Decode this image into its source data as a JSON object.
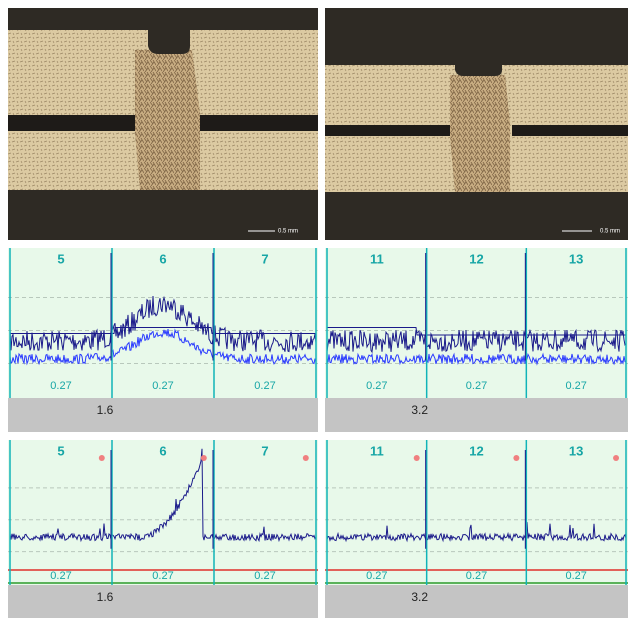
{
  "micrographs": [
    {
      "scale_label": "0.5 mm"
    },
    {
      "scale_label": "0.5 mm"
    }
  ],
  "plots": [
    {
      "segments": [
        {
          "label": "5",
          "value": 0.27
        },
        {
          "label": "6",
          "value": 0.27
        },
        {
          "label": "7",
          "value": 0.27
        }
      ],
      "axis_label": 1.6
    },
    {
      "segments": [
        {
          "label": "11",
          "value": 0.27
        },
        {
          "label": "12",
          "value": 0.27
        },
        {
          "label": "13",
          "value": 0.27
        }
      ],
      "axis_label": 3.2
    },
    {
      "segments": [
        {
          "label": "5",
          "value": 0.27
        },
        {
          "label": "6",
          "value": 0.27
        },
        {
          "label": "7",
          "value": 0.27
        }
      ],
      "axis_label": 1.6
    },
    {
      "segments": [
        {
          "label": "11",
          "value": 0.27
        },
        {
          "label": "12",
          "value": 0.27
        },
        {
          "label": "13",
          "value": 0.27
        }
      ],
      "axis_label": 3.2
    }
  ]
}
